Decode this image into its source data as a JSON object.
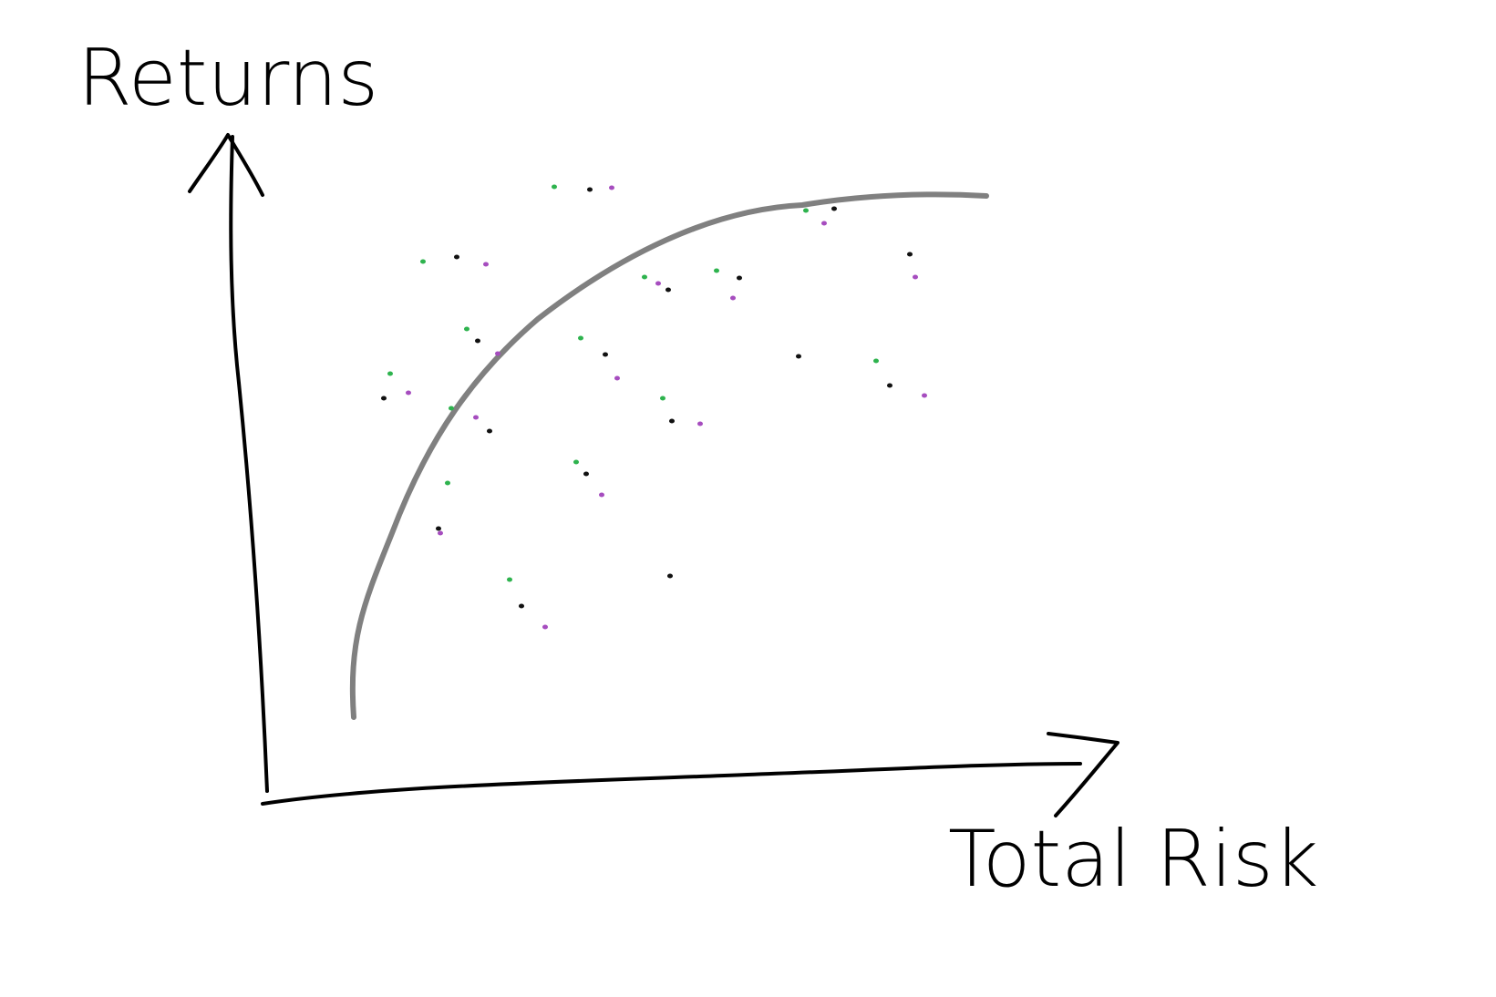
{
  "y_axis_label": "Returns",
  "x_axis_label": "Total Risk",
  "colors": {
    "ink": "#000000",
    "frontier": "#808080",
    "green": "#2eb34e",
    "purple": "#a64dbf",
    "black": "#111111"
  }
}
